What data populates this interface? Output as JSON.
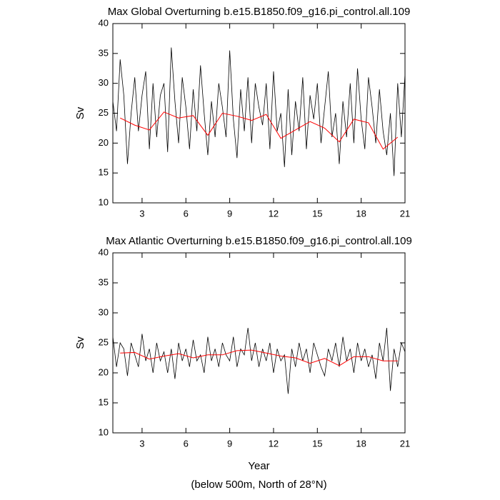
{
  "chart_data": [
    {
      "type": "line",
      "title": "Max Global Overturning b.e15.B1850.f09_g16.pi_control.all.109",
      "y_label": "Sv",
      "xlim": [
        1,
        21
      ],
      "xticks": [
        3,
        6,
        9,
        12,
        15,
        18,
        21
      ],
      "ylim": [
        10,
        40
      ],
      "yticks": [
        10,
        15,
        20,
        25,
        30,
        35,
        40
      ],
      "series": [
        {
          "color": "#000000",
          "x": [
            1,
            1.25,
            1.5,
            1.75,
            2,
            2.25,
            2.5,
            2.75,
            3,
            3.25,
            3.5,
            3.75,
            4,
            4.25,
            4.5,
            4.75,
            5,
            5.25,
            5.5,
            5.75,
            6,
            6.25,
            6.5,
            6.75,
            7,
            7.25,
            7.5,
            7.75,
            8,
            8.25,
            8.5,
            8.75,
            9,
            9.25,
            9.5,
            9.75,
            10,
            10.25,
            10.5,
            10.75,
            11,
            11.25,
            11.5,
            11.75,
            12,
            12.25,
            12.5,
            12.75,
            13,
            13.25,
            13.5,
            13.75,
            14,
            14.25,
            14.5,
            14.75,
            15,
            15.25,
            15.5,
            15.75,
            16,
            16.25,
            16.5,
            16.75,
            17,
            17.25,
            17.5,
            17.75,
            18,
            18.25,
            18.5,
            18.75,
            19,
            19.25,
            19.5,
            19.75,
            20,
            20.25,
            20.5,
            20.75,
            21
          ],
          "values": [
            27,
            22,
            34,
            28,
            16.5,
            25,
            31,
            22,
            28,
            32,
            19,
            30,
            21,
            28,
            30,
            18.5,
            36,
            27,
            20,
            31,
            26,
            19,
            29,
            22,
            33,
            25,
            18,
            27,
            21,
            30,
            26,
            21,
            35.5,
            24,
            17.5,
            29,
            22,
            31,
            20,
            30,
            26,
            23,
            30,
            19,
            32,
            22,
            25,
            16,
            29,
            18,
            27,
            22,
            31,
            19,
            28,
            24,
            30,
            20,
            26,
            32,
            21,
            25,
            16.5,
            27,
            21,
            30,
            20,
            32.5,
            24,
            19,
            31,
            26,
            20,
            29,
            22,
            18,
            25,
            14.5,
            30,
            21,
            31.5
          ]
        },
        {
          "color": "#ff0000",
          "x": [
            1.5,
            2.5,
            3.5,
            4.5,
            5.5,
            6.5,
            7.5,
            8.5,
            9.5,
            10.5,
            11.5,
            12.5,
            13.5,
            14.5,
            15.5,
            16.5,
            17.5,
            18.5,
            19.5,
            20.5
          ],
          "values": [
            24.2,
            23,
            22.2,
            25.2,
            24.2,
            24.6,
            21.3,
            25,
            24.5,
            23.8,
            24.8,
            20.8,
            22.2,
            23.6,
            22.5,
            20.2,
            24,
            23.4,
            19,
            21
          ]
        }
      ]
    },
    {
      "type": "line",
      "title": "Max Atlantic Overturning b.e15.B1850.f09_g16.pi_control.all.109",
      "y_label": "Sv",
      "x_label": "Year",
      "note": "(below 500m, North of 28°N)",
      "xlim": [
        1,
        21
      ],
      "xticks": [
        3,
        6,
        9,
        12,
        15,
        18,
        21
      ],
      "ylim": [
        10,
        40
      ],
      "yticks": [
        10,
        15,
        20,
        25,
        30,
        35,
        40
      ],
      "series": [
        {
          "color": "#000000",
          "x": [
            1,
            1.25,
            1.5,
            1.75,
            2,
            2.25,
            2.5,
            2.75,
            3,
            3.25,
            3.5,
            3.75,
            4,
            4.25,
            4.5,
            4.75,
            5,
            5.25,
            5.5,
            5.75,
            6,
            6.25,
            6.5,
            6.75,
            7,
            7.25,
            7.5,
            7.75,
            8,
            8.25,
            8.5,
            8.75,
            9,
            9.25,
            9.5,
            9.75,
            10,
            10.25,
            10.5,
            10.75,
            11,
            11.25,
            11.5,
            11.75,
            12,
            12.25,
            12.5,
            12.75,
            13,
            13.25,
            13.5,
            13.75,
            14,
            14.25,
            14.5,
            14.75,
            15,
            15.25,
            15.5,
            15.75,
            16,
            16.25,
            16.5,
            16.75,
            17,
            17.25,
            17.5,
            17.75,
            18,
            18.25,
            18.5,
            18.75,
            19,
            19.25,
            19.5,
            19.75,
            20,
            20.25,
            20.5,
            20.75,
            21
          ],
          "values": [
            26,
            21,
            25,
            24,
            19.5,
            25,
            23,
            21,
            26.5,
            22,
            24,
            20,
            25,
            22,
            23.5,
            20,
            24,
            19,
            25,
            22,
            24,
            21,
            25.5,
            22,
            23,
            20,
            26,
            22,
            24,
            21,
            25,
            23,
            22,
            26,
            21,
            24,
            23,
            27.5,
            22,
            25,
            21,
            24,
            22,
            25,
            20,
            24,
            22,
            23,
            16.5,
            24,
            21,
            25,
            22,
            24,
            20,
            25,
            23,
            21,
            19.5,
            24,
            22,
            25,
            21,
            26,
            22,
            24,
            20,
            25,
            22,
            24,
            21,
            23,
            19,
            25,
            22,
            27.5,
            17,
            24,
            21,
            25,
            23.5
          ]
        },
        {
          "color": "#ff0000",
          "x": [
            1.5,
            2.5,
            3.5,
            4.5,
            5.5,
            6.5,
            7.5,
            8.5,
            9.5,
            10.5,
            11.5,
            12.5,
            13.5,
            14.5,
            15.5,
            16.5,
            17.5,
            18.5,
            19.5,
            20.5
          ],
          "values": [
            23.3,
            23.4,
            22.3,
            22.8,
            23.2,
            22.5,
            23,
            23,
            23.7,
            23.8,
            23.3,
            22.8,
            22.5,
            21.6,
            22.4,
            21.2,
            22.7,
            22.7,
            22,
            22
          ]
        }
      ]
    }
  ]
}
